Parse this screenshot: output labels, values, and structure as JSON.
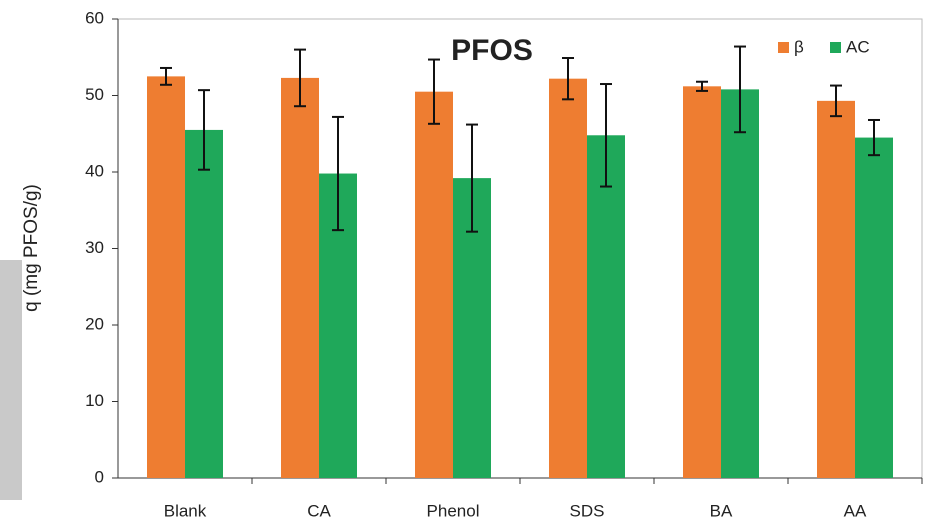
{
  "chart_data": {
    "type": "bar",
    "title": "PFOS",
    "y_label": "q (mg PFOS/g)",
    "categories": [
      "Blank",
      "CA",
      "Phenol",
      "SDS",
      "BA",
      "AA"
    ],
    "series": [
      {
        "name": "β",
        "color": "#ee7d31",
        "values": [
          52.5,
          52.3,
          50.5,
          52.2,
          51.2,
          49.3
        ],
        "errors": [
          1.1,
          3.7,
          4.2,
          2.7,
          0.6,
          2.0
        ]
      },
      {
        "name": "AC",
        "color": "#1fa85a",
        "values": [
          45.5,
          39.8,
          39.2,
          44.8,
          50.8,
          44.5
        ],
        "errors": [
          5.2,
          7.4,
          7.0,
          6.7,
          5.6,
          2.3
        ]
      }
    ],
    "ylim": [
      0,
      60
    ],
    "yticks": [
      0,
      10,
      20,
      30,
      40,
      50,
      60
    ],
    "legend": "top-right"
  }
}
